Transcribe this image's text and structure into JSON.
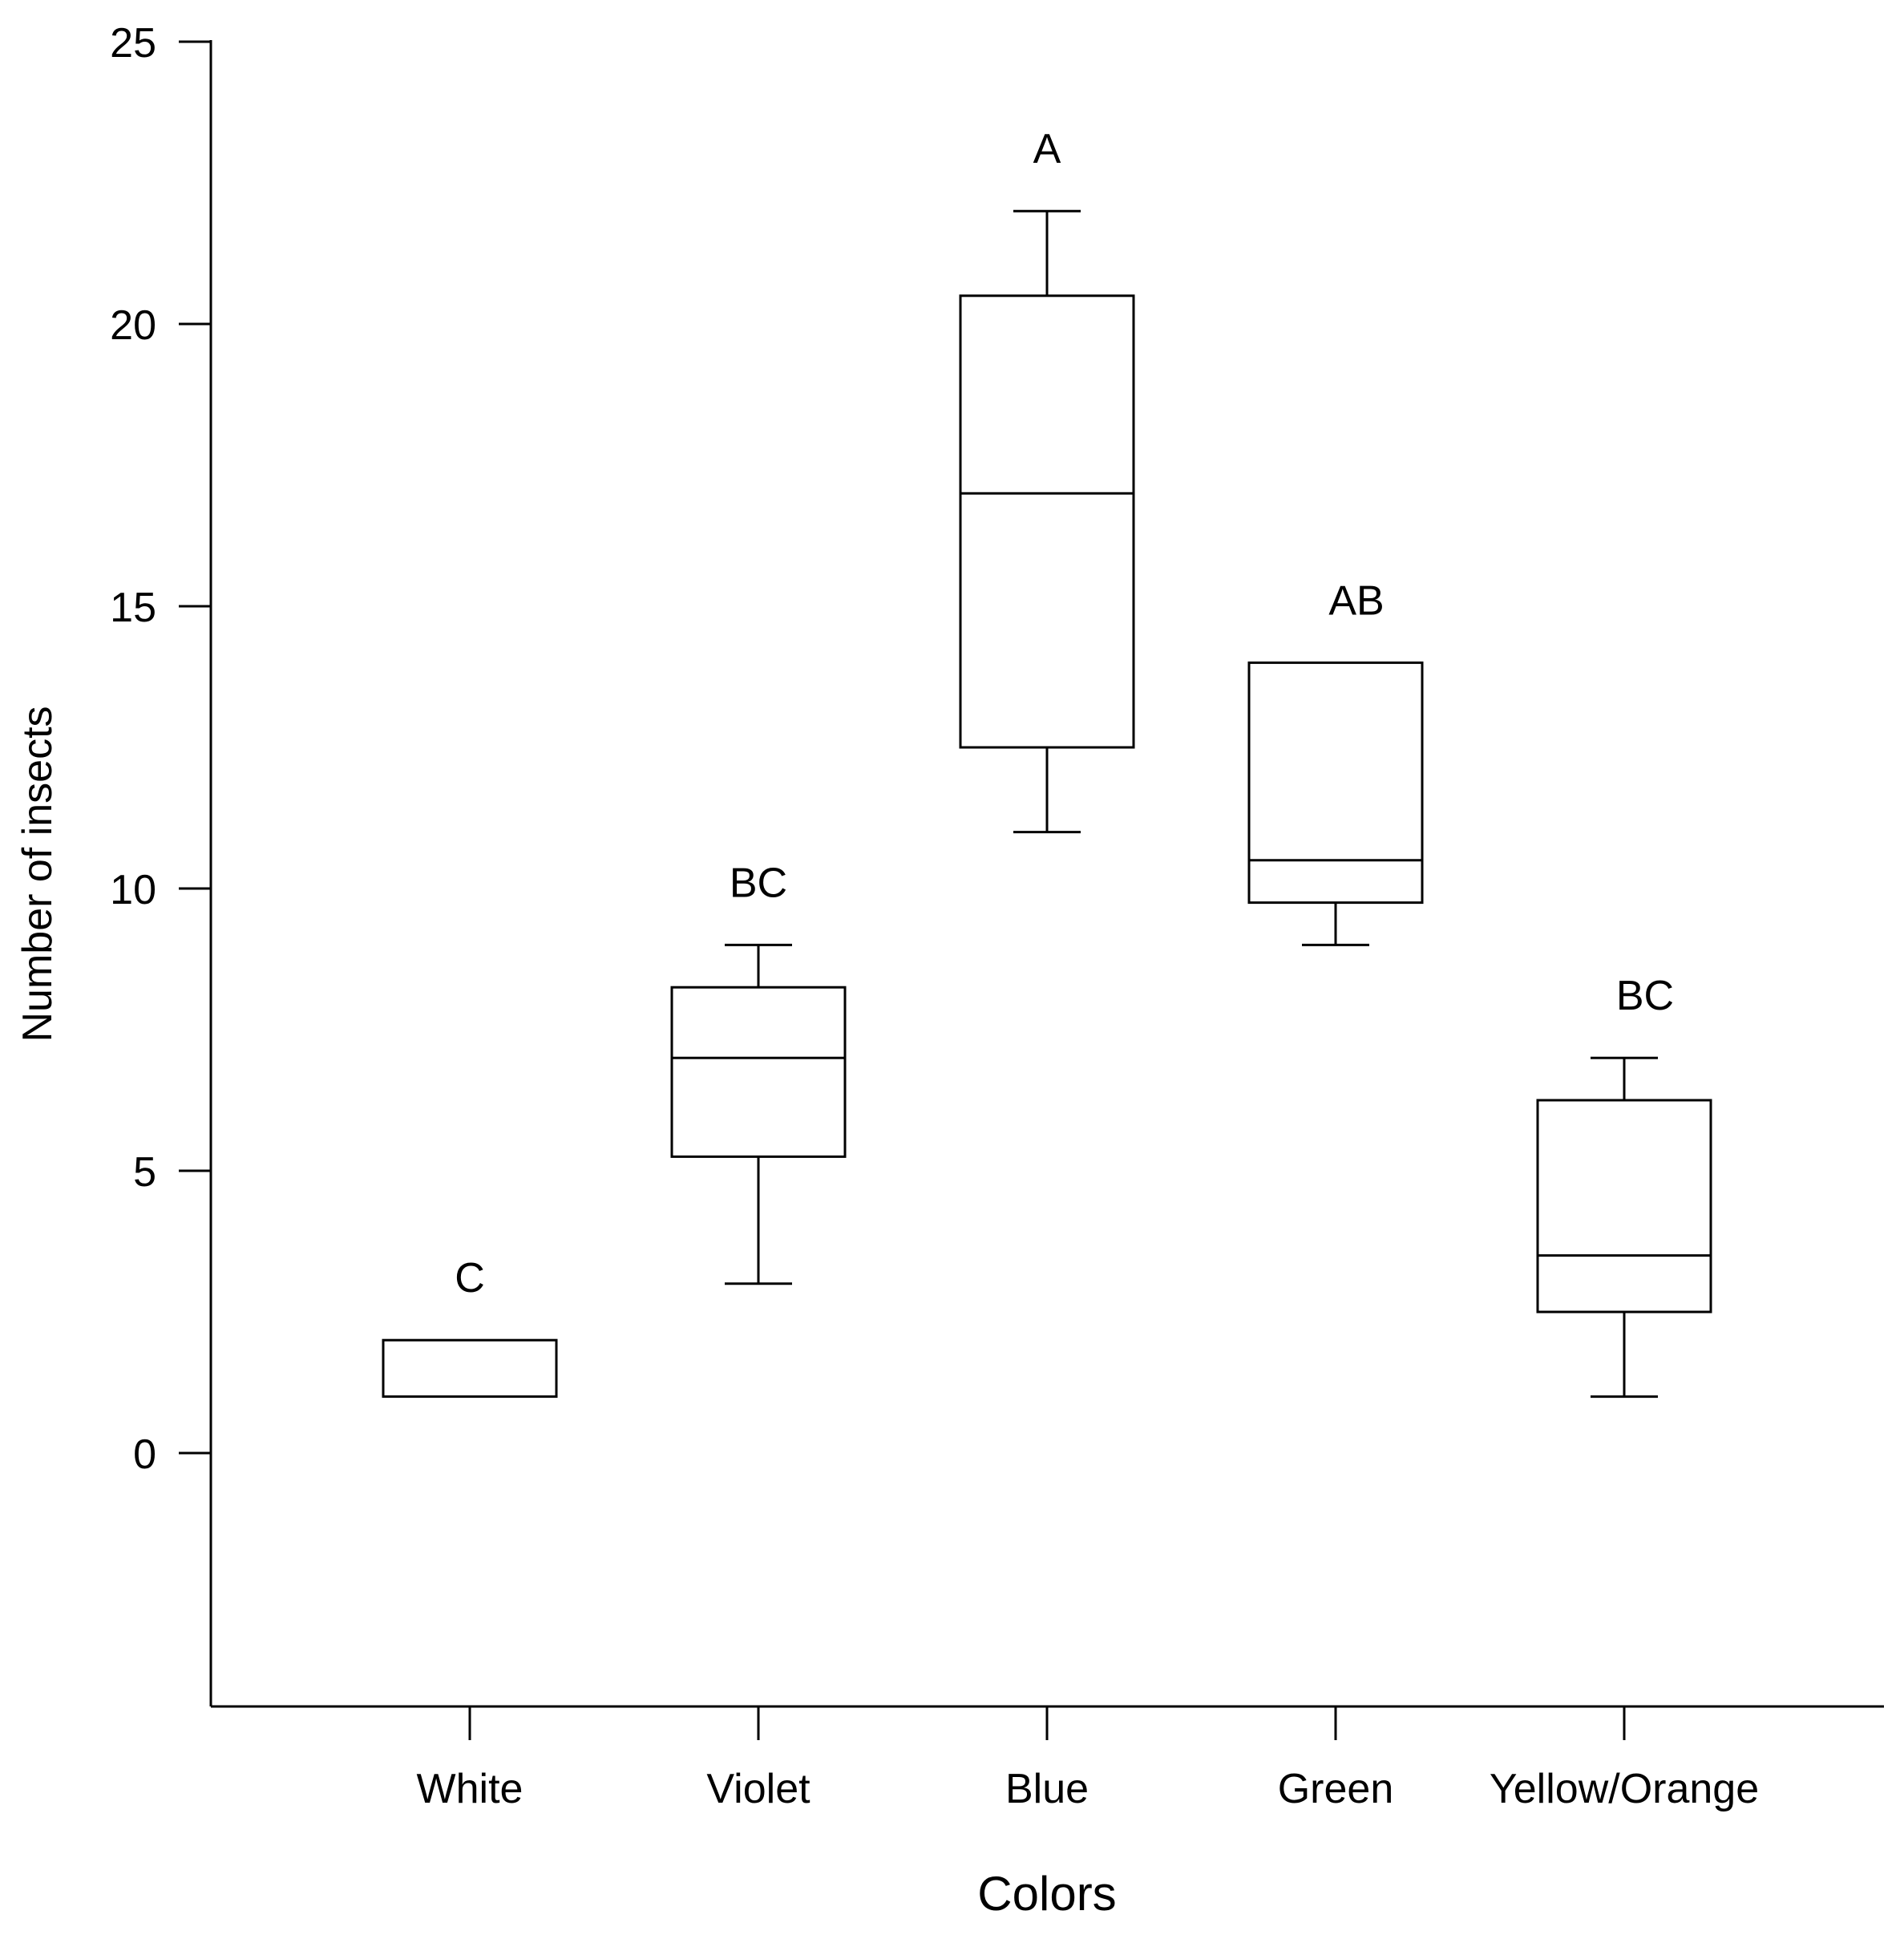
{
  "chart_data": {
    "type": "box",
    "title": "",
    "xlabel": "Colors",
    "ylabel": "Number of insects",
    "ylim": [
      -4.5,
      25
    ],
    "yticks": [
      0,
      5,
      10,
      15,
      20,
      25
    ],
    "ytick_labels": [
      "0",
      "5",
      "10",
      "15",
      "20",
      "25"
    ],
    "grid": false,
    "legend": "none",
    "categories": [
      "White",
      "Violet",
      "Blue",
      "Green",
      "Yellow/Orange"
    ],
    "boxes": [
      {
        "category": "White",
        "whisker_low": 1,
        "q1": 1,
        "median": 1,
        "q3": 2,
        "whisker_high": 2,
        "letter": "C"
      },
      {
        "category": "Violet",
        "whisker_low": 3,
        "q1": 5.25,
        "median": 7,
        "q3": 8.25,
        "whisker_high": 9,
        "letter": "BC"
      },
      {
        "category": "Blue",
        "whisker_low": 11,
        "q1": 12.5,
        "median": 17,
        "q3": 20.5,
        "whisker_high": 22,
        "letter": "A"
      },
      {
        "category": "Green",
        "whisker_low": 9,
        "q1": 9.75,
        "median": 10.5,
        "q3": 14,
        "whisker_high": 14,
        "letter": "AB"
      },
      {
        "category": "Yellow/Orange",
        "whisker_low": 1,
        "q1": 2.5,
        "median": 3.5,
        "q3": 6.25,
        "whisker_high": 7,
        "letter": "BC"
      }
    ],
    "colors": {
      "stroke": "#000000",
      "fill": "#ffffff",
      "background": "#ffffff"
    }
  }
}
